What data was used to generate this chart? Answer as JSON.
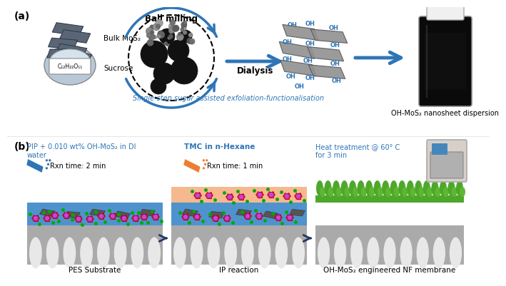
{
  "panel_a_label": "(a)",
  "panel_b_label": "(b)",
  "blue_color": "#2E75B6",
  "text_blue": "#2E75B6",
  "orange_color": "#F4B183",
  "green_color": "#4EA72A",
  "bulk_mos2_label": "Bulk MoS₂",
  "sucrose_label": "Sucrose",
  "ball_milling_label": "Ball milling",
  "dialysis_label": "Dialysis",
  "single_step_label": "Single-step sugar assisted exfoliation-functionalisation",
  "oh_mos2_label": "OH-MoS₂ nanosheet dispersion",
  "sucrose_formula": "C₁₂H₂₂O₁₁",
  "pip_label": "PIP + 0.010 wt% OH-MoS₂ in DI\nwater",
  "tmc_label": "TMC in n-Hexane",
  "rxn_time_2": "Rxn time: 2 min",
  "rxn_time_1": "Rxn time: 1 min",
  "heat_label": "Heat treatment @ 60° C\nfor 3 min",
  "pes_label": "PES Substrate",
  "ip_label": "IP reaction",
  "nf_label": "OH-MoS₂ engineered NF membrane",
  "background_color": "#FFFFFF"
}
